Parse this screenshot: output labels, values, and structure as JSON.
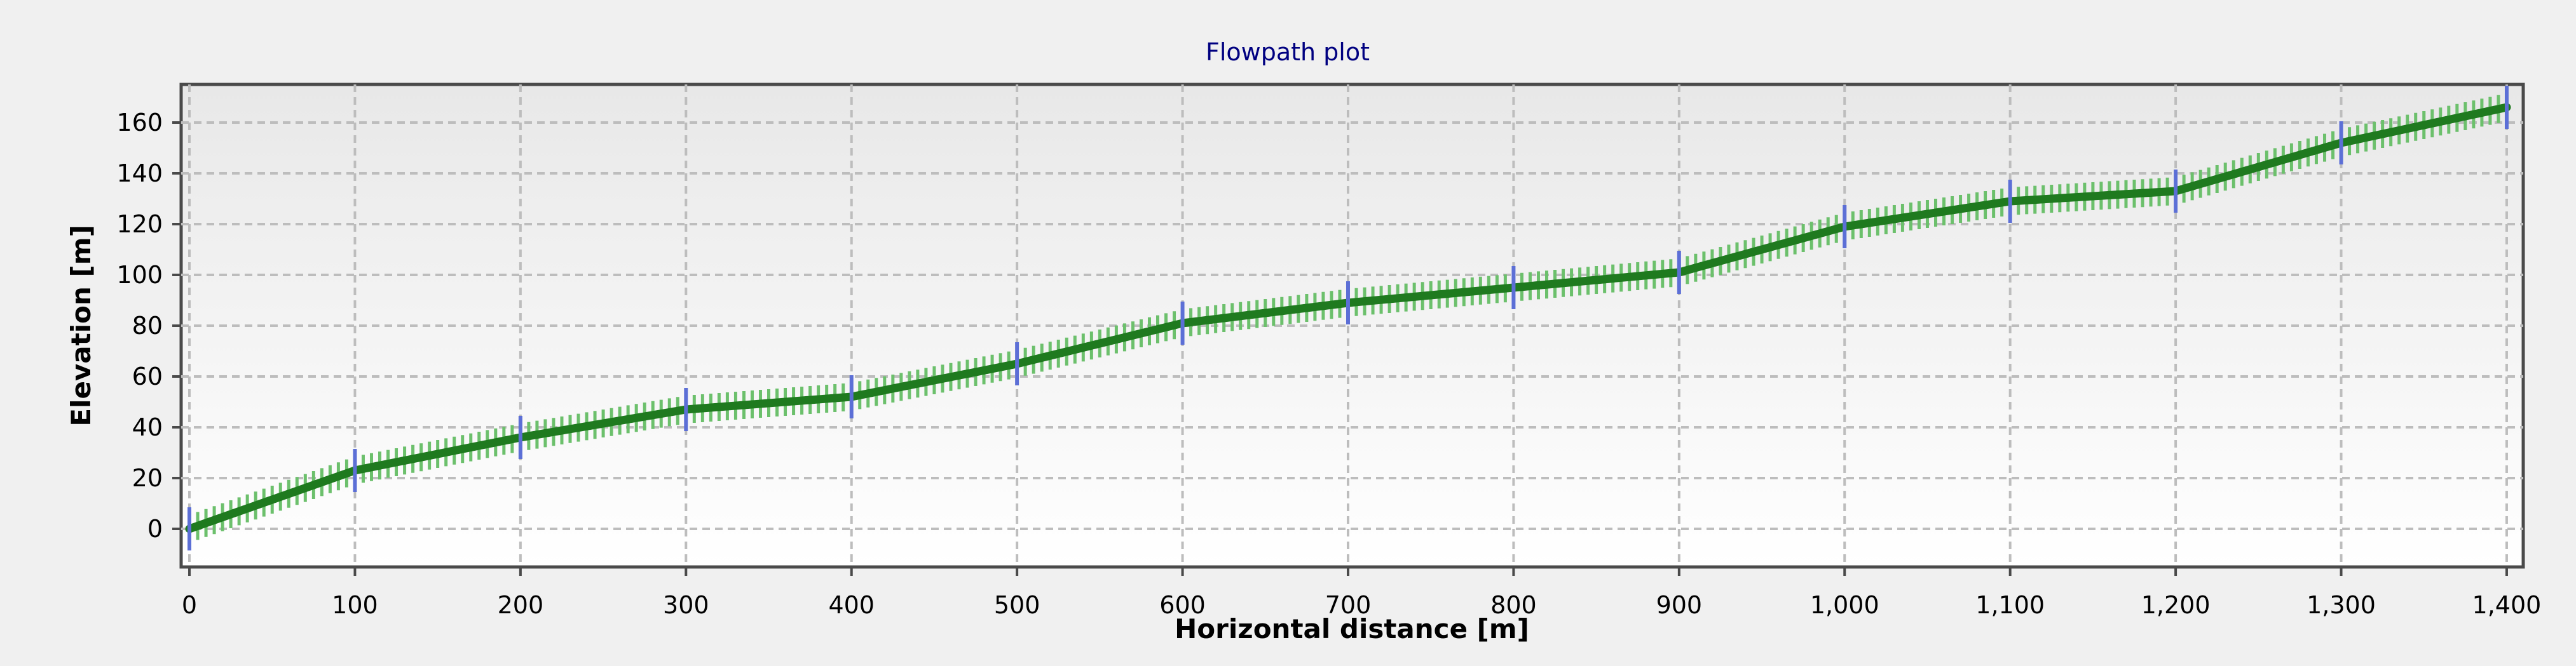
{
  "chart_data": {
    "type": "line",
    "title": "Flowpath plot",
    "xlabel": "Horizontal distance [m]",
    "ylabel": "Elevation [m]",
    "xlim": [
      -5,
      1410
    ],
    "ylim": [
      -15,
      175
    ],
    "x_ticks": [
      0,
      100,
      200,
      300,
      400,
      500,
      600,
      700,
      800,
      900,
      1000,
      1100,
      1200,
      1300,
      1400
    ],
    "x_tick_labels": [
      "0",
      "100",
      "200",
      "300",
      "400",
      "500",
      "600",
      "700",
      "800",
      "900",
      "1,000",
      "1,100",
      "1,200",
      "1,300",
      "1,400"
    ],
    "y_ticks": [
      0,
      20,
      40,
      60,
      80,
      100,
      120,
      140,
      160
    ],
    "y_tick_labels": [
      "0",
      "20",
      "40",
      "60",
      "80",
      "100",
      "120",
      "140",
      "160"
    ],
    "grid": true,
    "x": [
      0,
      100,
      200,
      300,
      400,
      500,
      600,
      700,
      800,
      900,
      1000,
      1100,
      1200,
      1300,
      1400
    ],
    "y": [
      0,
      23,
      36,
      47,
      52,
      65,
      81,
      89,
      95,
      101,
      119,
      129,
      133,
      152,
      166
    ],
    "minor_marker_step": 5,
    "colors": {
      "line": "#1f7a1f",
      "minor_markers": "#6cc06c",
      "major_markers": "#5c6fd6",
      "title": "#000080",
      "grid": "#bdbdbd",
      "plot_bg_top": "#e8e8e8",
      "plot_bg_bottom": "#ffffff"
    }
  }
}
